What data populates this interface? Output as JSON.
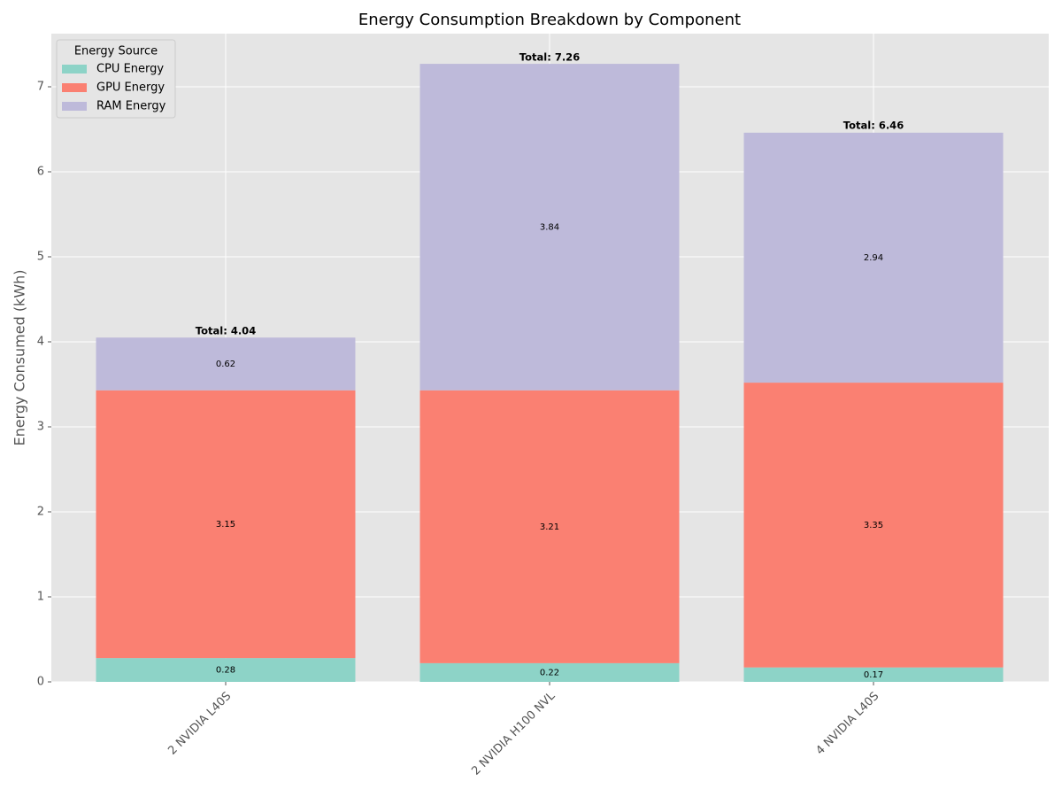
{
  "chart_data": {
    "type": "stacked_bar",
    "title": "Energy Consumption Breakdown by Component",
    "ylabel": "Energy Consumed (kWh)",
    "categories": [
      "2 NVIDIA L40S",
      "2 NVIDIA H100 NVL",
      "4 NVIDIA L40S"
    ],
    "series": [
      {
        "name": "CPU Energy",
        "color": "#8dd3c7",
        "values": [
          0.28,
          0.22,
          0.17
        ]
      },
      {
        "name": "GPU Energy",
        "color": "#fa8072",
        "values": [
          3.15,
          3.21,
          3.35
        ]
      },
      {
        "name": "RAM Energy",
        "color": "#bebada",
        "values": [
          0.62,
          3.84,
          2.94
        ]
      }
    ],
    "totals": [
      4.04,
      7.26,
      6.46
    ],
    "total_labels": [
      "Total: 4.04",
      "Total: 7.26",
      "Total: 6.46"
    ],
    "legend_title": "Energy Source",
    "legend": "upper left",
    "ylim": [
      0,
      7.625
    ],
    "yticks": [
      0,
      1,
      2,
      3,
      4,
      5,
      6,
      7
    ],
    "grid": true
  }
}
